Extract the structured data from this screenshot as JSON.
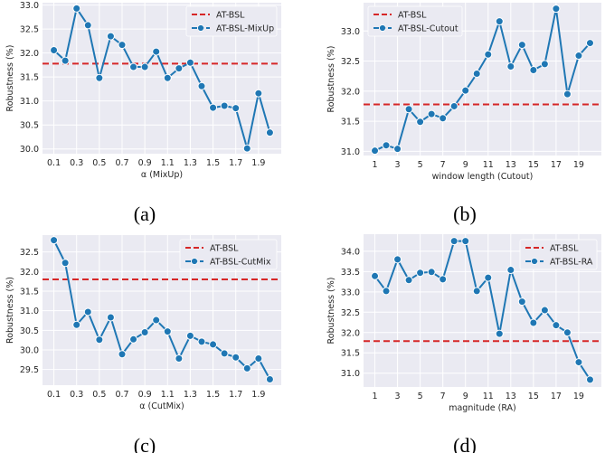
{
  "figure": {
    "captions": [
      "(a)",
      "(b)",
      "(c)",
      "(d)"
    ]
  },
  "colors": {
    "baseline": "#d62728",
    "series": "#1f77b4",
    "plot_bg": "#eaeaf2",
    "grid": "#ffffff"
  },
  "chart_data": [
    {
      "type": "line",
      "panel": "a",
      "xlabel": "α (MixUp)",
      "ylabel": "Robustness (%)",
      "x": [
        0.1,
        0.2,
        0.3,
        0.4,
        0.5,
        0.6,
        0.7,
        0.8,
        0.9,
        1.0,
        1.1,
        1.2,
        1.3,
        1.4,
        1.5,
        1.6,
        1.7,
        1.8,
        1.9,
        2.0
      ],
      "xticks": [
        0.1,
        0.3,
        0.5,
        0.7,
        0.9,
        1.1,
        1.3,
        1.5,
        1.7,
        1.9
      ],
      "xtick_labels": [
        "0.1",
        "0.3",
        "0.5",
        "0.7",
        "0.9",
        "1.1",
        "1.3",
        "1.5",
        "1.7",
        "1.9"
      ],
      "xlim": [
        0.0,
        2.1
      ],
      "yticks": [
        30.0,
        30.5,
        31.0,
        31.5,
        32.0,
        32.5,
        33.0
      ],
      "ytick_labels": [
        "30.0",
        "30.5",
        "31.0",
        "31.5",
        "32.0",
        "32.5",
        "33.0"
      ],
      "ylim": [
        29.9,
        33.05
      ],
      "grid": true,
      "legend_position": "top-right",
      "series": [
        {
          "name": "AT-BSL",
          "style": "dashed-hline",
          "value": 31.78
        },
        {
          "name": "AT-BSL-MixUp",
          "style": "line-marker",
          "values": [
            32.06,
            31.84,
            32.93,
            32.58,
            31.48,
            32.35,
            32.17,
            31.71,
            31.71,
            32.03,
            31.48,
            31.68,
            31.8,
            31.31,
            30.86,
            30.9,
            30.85,
            30.01,
            31.16,
            30.34
          ]
        }
      ]
    },
    {
      "type": "line",
      "panel": "b",
      "xlabel": "window length (Cutout)",
      "ylabel": "Robustness (%)",
      "x": [
        1,
        2,
        3,
        4,
        5,
        6,
        7,
        8,
        9,
        10,
        11,
        12,
        13,
        14,
        15,
        16,
        17,
        18,
        19,
        20
      ],
      "xticks": [
        1,
        3,
        5,
        7,
        9,
        11,
        13,
        15,
        17,
        19
      ],
      "xtick_labels": [
        "1",
        "3",
        "5",
        "7",
        "9",
        "11",
        "13",
        "15",
        "17",
        "19"
      ],
      "xlim": [
        0.0,
        21.0
      ],
      "yticks": [
        31.0,
        31.5,
        32.0,
        32.5,
        33.0
      ],
      "ytick_labels": [
        "31.0",
        "31.5",
        "32.0",
        "32.5",
        "33.0"
      ],
      "ylim": [
        30.93,
        33.47
      ],
      "grid": true,
      "legend_position": "top-left",
      "series": [
        {
          "name": "AT-BSL",
          "style": "dashed-hline",
          "value": 31.78
        },
        {
          "name": "AT-BSL-Cutout",
          "style": "line-marker",
          "values": [
            31.01,
            31.1,
            31.04,
            31.7,
            31.49,
            31.62,
            31.55,
            31.75,
            32.01,
            32.29,
            32.61,
            33.16,
            32.41,
            32.77,
            32.35,
            32.45,
            33.37,
            31.95,
            32.59,
            32.8
          ]
        }
      ]
    },
    {
      "type": "line",
      "panel": "c",
      "xlabel": "α (CutMix)",
      "ylabel": "Robustness (%)",
      "x": [
        0.1,
        0.2,
        0.3,
        0.4,
        0.5,
        0.6,
        0.7,
        0.8,
        0.9,
        1.0,
        1.1,
        1.2,
        1.3,
        1.4,
        1.5,
        1.6,
        1.7,
        1.8,
        1.9,
        2.0
      ],
      "xticks": [
        0.1,
        0.3,
        0.5,
        0.7,
        0.9,
        1.1,
        1.3,
        1.5,
        1.7,
        1.9
      ],
      "xtick_labels": [
        "0.1",
        "0.3",
        "0.5",
        "0.7",
        "0.9",
        "1.1",
        "1.3",
        "1.5",
        "1.7",
        "1.9"
      ],
      "xlim": [
        0.0,
        2.1
      ],
      "yticks": [
        29.5,
        30.0,
        30.5,
        31.0,
        31.5,
        32.0,
        32.5
      ],
      "ytick_labels": [
        "29.5",
        "30.0",
        "30.5",
        "31.0",
        "31.5",
        "32.0",
        "32.5"
      ],
      "ylim": [
        29.1,
        32.93
      ],
      "grid": true,
      "legend_position": "top-right",
      "series": [
        {
          "name": "AT-BSL",
          "style": "dashed-hline",
          "value": 31.8
        },
        {
          "name": "AT-BSL-CutMix",
          "style": "line-marker",
          "values": [
            32.8,
            32.22,
            30.64,
            30.97,
            30.26,
            30.83,
            29.89,
            30.27,
            30.45,
            30.76,
            30.47,
            29.78,
            30.36,
            30.21,
            30.14,
            29.91,
            29.81,
            29.53,
            29.78,
            29.25
          ]
        }
      ]
    },
    {
      "type": "line",
      "panel": "d",
      "xlabel": "magnitude (RA)",
      "ylabel": "Robustness (%)",
      "x": [
        1,
        2,
        3,
        4,
        5,
        6,
        7,
        8,
        9,
        10,
        11,
        12,
        13,
        14,
        15,
        16,
        17,
        18,
        19,
        20
      ],
      "xticks": [
        1,
        3,
        5,
        7,
        9,
        11,
        13,
        15,
        17,
        19
      ],
      "xtick_labels": [
        "1",
        "3",
        "5",
        "7",
        "9",
        "11",
        "13",
        "15",
        "17",
        "19"
      ],
      "xlim": [
        0.0,
        21.0
      ],
      "yticks": [
        31.0,
        31.5,
        32.0,
        32.5,
        33.0,
        33.5,
        34.0
      ],
      "ytick_labels": [
        "31.0",
        "31.5",
        "32.0",
        "32.5",
        "33.0",
        "33.5",
        "34.0"
      ],
      "ylim": [
        30.66,
        34.42
      ],
      "grid": true,
      "legend_position": "top-right",
      "series": [
        {
          "name": "AT-BSL",
          "style": "dashed-hline",
          "value": 31.79
        },
        {
          "name": "AT-BSL-RA",
          "style": "line-marker",
          "values": [
            33.39,
            33.02,
            33.8,
            33.29,
            33.47,
            33.49,
            33.31,
            34.25,
            34.25,
            33.02,
            33.35,
            31.97,
            33.54,
            32.76,
            32.24,
            32.55,
            32.18,
            32.0,
            31.27,
            30.84
          ]
        }
      ]
    }
  ]
}
